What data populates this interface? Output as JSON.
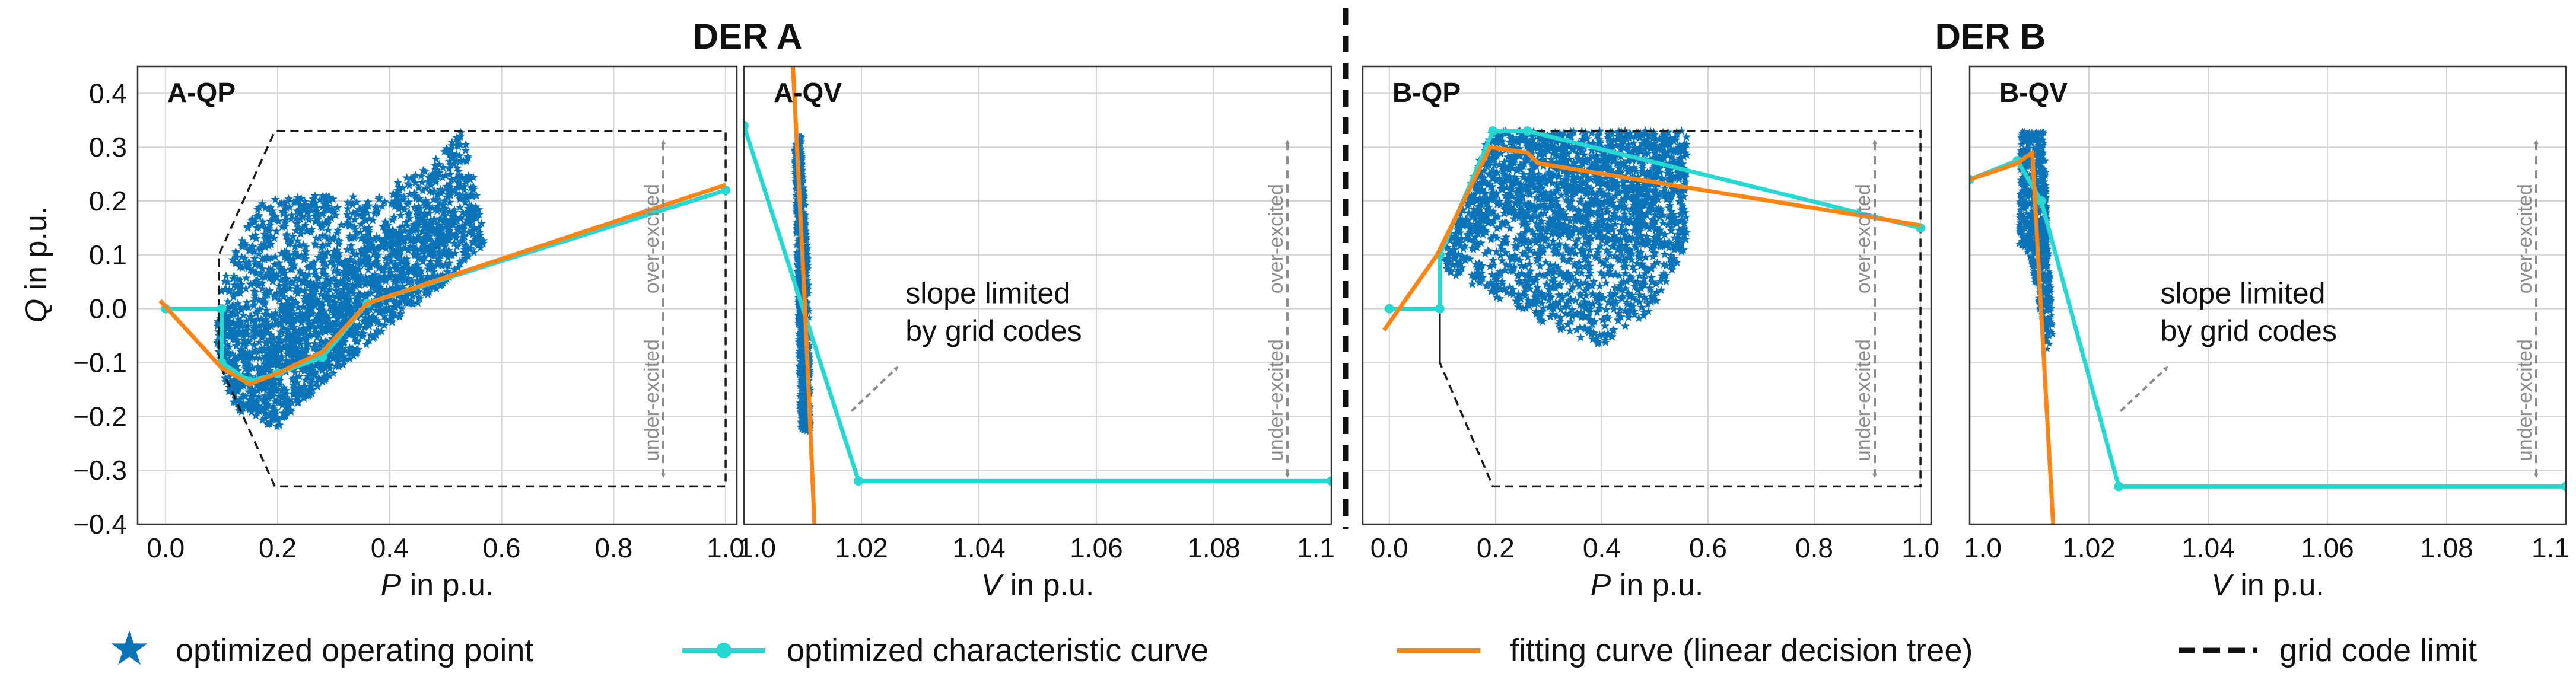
{
  "colors": {
    "scatter": "#0b74b8",
    "curve": "#25d9d2",
    "fit": "#ff8412",
    "grid": "#d4d4d4",
    "limit": "#1a1a1a",
    "excitation_arrow": "#8c8c8c"
  },
  "titles": {
    "der_a": "DER A",
    "der_b": "DER B"
  },
  "axis": {
    "ylabel_q": "Q",
    "ylabel_rest": " in p.u.",
    "xlabel_p": "P",
    "xlabel_v": "V",
    "xlabel_rest": " in p.u.",
    "ylim": [
      -0.4,
      0.45
    ],
    "yticks": [
      "0.4",
      "0.3",
      "0.2",
      "0.1",
      "0.0",
      "−0.1",
      "−0.2",
      "−0.3",
      "−0.4"
    ],
    "p_ticks": [
      "0.0",
      "0.2",
      "0.4",
      "0.6",
      "0.8",
      "1.0"
    ],
    "v_ticks": [
      "1.0",
      "1.02",
      "1.04",
      "1.06",
      "1.08",
      "1.1"
    ]
  },
  "annotations": {
    "over_excited": "over-excited",
    "under_excited": "under-excited",
    "slope_line1": "slope limited",
    "slope_line2": "by grid codes"
  },
  "legend": {
    "scatter": "optimized operating point",
    "curve": "optimized characteristic curve",
    "fit": "fitting curve (linear decision tree)",
    "limit": "grid code limit"
  },
  "chart_data": [
    {
      "id": "A-QP",
      "type": "scatter",
      "title": "A-QP",
      "xlabel": "P in p.u.",
      "ylabel": "Q in p.u.",
      "xlim": [
        -0.05,
        1.02
      ],
      "ylim": [
        -0.4,
        0.45
      ],
      "scatter_cloud": [
        [
          0.1,
          -0.12
        ],
        [
          0.13,
          -0.2
        ],
        [
          0.2,
          -0.22
        ],
        [
          0.3,
          -0.12
        ],
        [
          0.4,
          -0.03
        ],
        [
          0.5,
          0.05
        ],
        [
          0.57,
          0.12
        ],
        [
          0.55,
          0.25
        ],
        [
          0.53,
          0.33
        ],
        [
          0.47,
          0.28
        ],
        [
          0.38,
          0.21
        ],
        [
          0.25,
          0.21
        ],
        [
          0.17,
          0.2
        ],
        [
          0.1,
          0.06
        ],
        [
          0.09,
          -0.05
        ]
      ],
      "characteristic_curve": {
        "x": [
          0.0,
          0.1,
          0.1,
          0.15,
          0.2,
          0.28,
          0.36,
          1.0
        ],
        "y": [
          0.0,
          0.0,
          -0.1,
          -0.135,
          -0.12,
          -0.09,
          0.01,
          0.22
        ]
      },
      "fitting_curve": {
        "x": [
          -0.01,
          0.1,
          0.15,
          0.2,
          0.28,
          0.36,
          1.0
        ],
        "y": [
          0.015,
          -0.11,
          -0.14,
          -0.12,
          -0.08,
          0.01,
          0.23
        ]
      },
      "grid_code_limit": {
        "x": [
          0.095,
          0.095,
          0.195,
          1.0,
          1.0,
          0.195,
          0.095,
          0.095
        ],
        "y": [
          -0.1,
          0.1,
          0.33,
          0.33,
          -0.33,
          -0.33,
          -0.1,
          0.1
        ]
      }
    },
    {
      "id": "A-QV",
      "type": "scatter",
      "title": "A-QV",
      "xlabel": "V in p.u.",
      "ylabel": "Q in p.u.",
      "xlim": [
        1.0,
        1.1
      ],
      "ylim": [
        -0.4,
        0.45
      ],
      "scatter_cloud": [
        [
          1.0095,
          -0.23
        ],
        [
          1.0115,
          -0.23
        ],
        [
          1.011,
          0.1
        ],
        [
          1.0098,
          0.33
        ],
        [
          1.0085,
          0.3
        ],
        [
          1.009,
          0.05
        ]
      ],
      "characteristic_curve": {
        "x": [
          1.0,
          1.0195,
          1.1
        ],
        "y": [
          0.34,
          -0.32,
          -0.32
        ]
      },
      "fitting_curve": {
        "x": [
          1.0082,
          1.0104,
          1.012
        ],
        "y": [
          0.48,
          0.0,
          -0.4
        ]
      }
    },
    {
      "id": "B-QP",
      "type": "scatter",
      "title": "B-QP",
      "xlabel": "P in p.u.",
      "ylabel": "Q in p.u.",
      "xlim": [
        -0.05,
        1.02
      ],
      "ylim": [
        -0.4,
        0.45
      ],
      "scatter_cloud": [
        [
          0.1,
          0.09
        ],
        [
          0.19,
          0.33
        ],
        [
          0.56,
          0.33
        ],
        [
          0.56,
          0.12
        ],
        [
          0.5,
          0.0
        ],
        [
          0.4,
          -0.07
        ],
        [
          0.3,
          -0.03
        ],
        [
          0.18,
          0.03
        ],
        [
          0.11,
          0.07
        ]
      ],
      "characteristic_curve": {
        "x": [
          0.0,
          0.095,
          0.095,
          0.195,
          0.26,
          1.0
        ],
        "y": [
          0.0,
          0.0,
          0.1,
          0.33,
          0.33,
          0.15
        ]
      },
      "fitting_curve": {
        "x": [
          -0.01,
          0.09,
          0.19,
          0.26,
          0.28,
          1.0
        ],
        "y": [
          -0.04,
          0.1,
          0.3,
          0.29,
          0.27,
          0.155
        ]
      },
      "grid_code_limit": {
        "x": [
          0.095,
          0.095,
          0.195,
          1.0,
          1.0,
          0.195,
          0.095,
          0.095
        ],
        "y": [
          -0.1,
          0.1,
          0.33,
          0.33,
          -0.33,
          -0.33,
          -0.1,
          0.1
        ]
      }
    },
    {
      "id": "B-QV",
      "type": "scatter",
      "title": "B-QV",
      "xlabel": "V in p.u.",
      "ylabel": "Q in p.u.",
      "xlim": [
        1.0,
        1.1
      ],
      "ylim": [
        -0.4,
        0.45
      ],
      "scatter_cloud": [
        [
          1.0085,
          0.33
        ],
        [
          1.0125,
          0.33
        ],
        [
          1.014,
          -0.05
        ],
        [
          1.013,
          -0.08
        ],
        [
          1.01,
          0.1
        ],
        [
          1.0082,
          0.12
        ]
      ],
      "characteristic_curve": {
        "x": [
          1.0,
          1.008,
          1.012,
          1.025,
          1.1
        ],
        "y": [
          0.24,
          0.275,
          0.2,
          -0.33,
          -0.33
        ]
      },
      "fitting_curve": {
        "x": [
          1.0,
          1.008,
          1.0105,
          1.014
        ],
        "y": [
          0.24,
          0.27,
          0.29,
          -0.4
        ]
      }
    }
  ]
}
